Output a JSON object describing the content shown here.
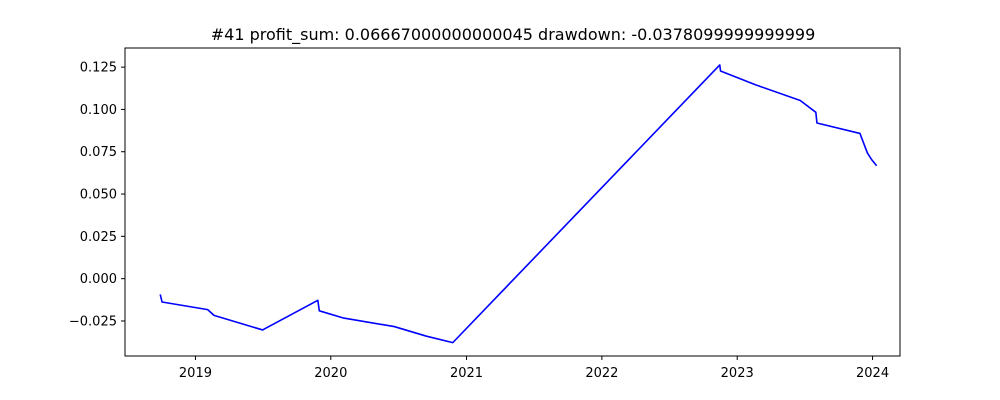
{
  "chart_data": {
    "type": "line",
    "title": "#41   profit_sum: 0.06667000000000045 drawdown: -0.0378099999999999",
    "xlabel": "",
    "ylabel": "",
    "x_tick_labels": [
      "2019",
      "2020",
      "2021",
      "2022",
      "2023",
      "2024"
    ],
    "x_ticks": [
      "2019-01-01",
      "2020-01-01",
      "2021-01-01",
      "2022-01-01",
      "2023-01-01",
      "2024-01-01"
    ],
    "y_tick_labels": [
      "0.125",
      "0.100",
      "0.075",
      "0.050",
      "0.025",
      "0.000",
      "−0.025"
    ],
    "y_ticks": [
      0.125,
      0.1,
      0.075,
      0.05,
      0.025,
      0.0,
      -0.025
    ],
    "xlim": [
      "2018-06-25",
      "2024-03-15"
    ],
    "ylim": [
      -0.0457,
      0.1363
    ],
    "grid": false,
    "legend": false,
    "series": [
      {
        "color": "#0000ff",
        "x": [
          "2018-09-28",
          "2018-10-03",
          "2019-02-03",
          "2019-02-20",
          "2019-07-01",
          "2019-11-27",
          "2019-12-01",
          "2020-02-05",
          "2020-06-20",
          "2020-09-15",
          "2020-11-25",
          "2022-11-15",
          "2022-11-17",
          "2023-02-20",
          "2023-06-20",
          "2023-08-01",
          "2023-08-04",
          "2023-11-28",
          "2023-12-18",
          "2023-12-29",
          "2024-01-12"
        ],
        "y": [
          -0.0093,
          -0.0138,
          -0.0183,
          -0.0217,
          -0.0303,
          -0.0128,
          -0.019,
          -0.0233,
          -0.0283,
          -0.034,
          -0.0378,
          0.1263,
          0.1227,
          0.1145,
          0.1053,
          0.0983,
          0.092,
          0.0858,
          0.0743,
          0.0705,
          0.0667
        ]
      }
    ]
  }
}
